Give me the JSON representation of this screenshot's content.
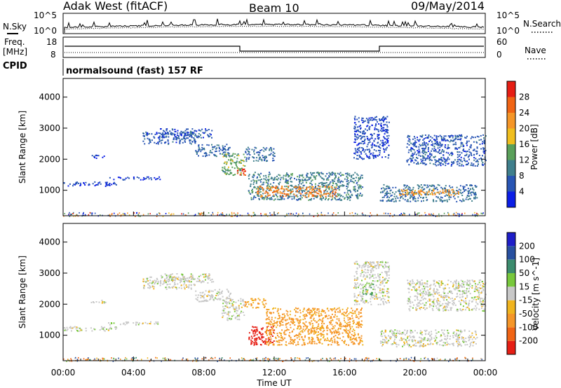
{
  "header": {
    "station": "Adak West (fitACF)",
    "beam": "Beam 10",
    "date": "09/May/2014"
  },
  "noise_panel": {
    "left_label": "N.Sky",
    "left_ticks": [
      "10^5",
      "10^0"
    ],
    "right_label": "N.Search",
    "right_ticks": [
      "10^5",
      "10^0"
    ]
  },
  "freq_panel": {
    "left_label_1": "Freq.",
    "left_label_2": "[MHz]",
    "left_ticks": [
      "18",
      "8"
    ],
    "right_label": "Nave",
    "right_ticks": [
      "60",
      "0"
    ]
  },
  "cpid_panel": {
    "label": "CPID",
    "mode": "normalsound (fast) 157 RF"
  },
  "colors": {
    "power_scale": [
      "#0b1ee6",
      "#2855b4",
      "#3f7f8c",
      "#5aa05a",
      "#f0be1e",
      "#f59628",
      "#f06414",
      "#e61e14"
    ],
    "velocity_scale": [
      "#e61e14",
      "#f06414",
      "#f59628",
      "#f0b41e",
      "#c8c8c8",
      "#78c83c",
      "#3c8c6e",
      "#2850a0",
      "#1e1ec8"
    ]
  },
  "chart_data": [
    {
      "type": "heatmap",
      "panel": "power",
      "xlabel": "Time UT",
      "ylabel": "Slant Range [km]",
      "xlim": [
        "00:00",
        "24:00"
      ],
      "ylim": [
        180,
        4600
      ],
      "x_ticks": [
        "00:00",
        "04:00",
        "08:00",
        "12:00",
        "16:00",
        "20:00",
        "00:00"
      ],
      "y_ticks": [
        1000,
        2000,
        3000,
        4000
      ],
      "colorbar": {
        "label": "Power [dB]",
        "ticks": [
          4,
          8,
          12,
          16,
          20,
          24,
          28
        ],
        "range": [
          0,
          32
        ]
      },
      "regions": [
        {
          "start_h": 0.0,
          "end_h": 3.0,
          "range_km": [
            1150,
            1300
          ],
          "value_db": 4
        },
        {
          "start_h": 1.5,
          "end_h": 2.5,
          "range_km": [
            2050,
            2150
          ],
          "value_db": 4
        },
        {
          "start_h": 2.5,
          "end_h": 5.5,
          "range_km": [
            1350,
            1450
          ],
          "value_db": 4
        },
        {
          "start_h": 4.5,
          "end_h": 7.5,
          "range_km": [
            2500,
            2900
          ],
          "value_db": 6
        },
        {
          "start_h": 5.5,
          "end_h": 8.5,
          "range_km": [
            2700,
            3000
          ],
          "value_db": 6
        },
        {
          "start_h": 7.5,
          "end_h": 9.5,
          "range_km": [
            2100,
            2500
          ],
          "value_db": 7
        },
        {
          "start_h": 9.0,
          "end_h": 10.3,
          "range_km": [
            1500,
            2200
          ],
          "value_db": 14
        },
        {
          "start_h": 9.8,
          "end_h": 10.4,
          "range_km": [
            1500,
            1700
          ],
          "value_db": 30
        },
        {
          "start_h": 10.3,
          "end_h": 12.0,
          "range_km": [
            1950,
            2400
          ],
          "value_db": 8
        },
        {
          "start_h": 10.5,
          "end_h": 17.0,
          "range_km": [
            700,
            1600
          ],
          "value_db": 10
        },
        {
          "start_h": 11.0,
          "end_h": 15.5,
          "range_km": [
            800,
            1150
          ],
          "value_db": 24
        },
        {
          "start_h": 16.5,
          "end_h": 18.5,
          "range_km": [
            2000,
            3400
          ],
          "value_db": 5
        },
        {
          "start_h": 18.0,
          "end_h": 23.5,
          "range_km": [
            650,
            1200
          ],
          "value_db": 9
        },
        {
          "start_h": 19.0,
          "end_h": 22.5,
          "range_km": [
            850,
            1050
          ],
          "value_db": 22
        },
        {
          "start_h": 19.5,
          "end_h": 24.0,
          "range_km": [
            1800,
            2800
          ],
          "value_db": 6
        }
      ]
    },
    {
      "type": "heatmap",
      "panel": "velocity",
      "xlabel": "Time UT",
      "ylabel": "Slant Range [km]",
      "xlim": [
        "00:00",
        "24:00"
      ],
      "ylim": [
        180,
        4600
      ],
      "x_ticks": [
        "00:00",
        "04:00",
        "08:00",
        "12:00",
        "16:00",
        "20:00",
        "00:00"
      ],
      "y_ticks": [
        1000,
        2000,
        3000,
        4000
      ],
      "colorbar": {
        "label": "Velocity [m s^-1]",
        "ticks": [
          200,
          100,
          50,
          15,
          -15,
          -50,
          -100,
          -200
        ],
        "range": [
          -250,
          250
        ]
      },
      "regions": [
        {
          "start_h": 0.0,
          "end_h": 3.0,
          "range_km": [
            1150,
            1300
          ],
          "value_ms": 0
        },
        {
          "start_h": 1.5,
          "end_h": 2.5,
          "range_km": [
            2050,
            2150
          ],
          "value_ms": 0
        },
        {
          "start_h": 2.5,
          "end_h": 5.5,
          "range_km": [
            1350,
            1450
          ],
          "value_ms": 0
        },
        {
          "start_h": 4.5,
          "end_h": 7.5,
          "range_km": [
            2500,
            2900
          ],
          "value_ms": 0
        },
        {
          "start_h": 5.5,
          "end_h": 8.5,
          "range_km": [
            2700,
            3000
          ],
          "value_ms": 0
        },
        {
          "start_h": 7.5,
          "end_h": 9.5,
          "range_km": [
            2100,
            2500
          ],
          "value_ms": 0
        },
        {
          "start_h": 9.0,
          "end_h": 10.3,
          "range_km": [
            1500,
            2200
          ],
          "value_ms": 0
        },
        {
          "start_h": 10.3,
          "end_h": 11.5,
          "range_km": [
            1900,
            2200
          ],
          "value_ms": -60
        },
        {
          "start_h": 10.5,
          "end_h": 12.0,
          "range_km": [
            700,
            1300
          ],
          "value_ms": -220
        },
        {
          "start_h": 11.5,
          "end_h": 17.0,
          "range_km": [
            700,
            1900
          ],
          "value_ms": -60
        },
        {
          "start_h": 16.5,
          "end_h": 18.5,
          "range_km": [
            2000,
            3400
          ],
          "value_ms": 0
        },
        {
          "start_h": 17.0,
          "end_h": 17.6,
          "range_km": [
            2300,
            2700
          ],
          "value_ms": 40
        },
        {
          "start_h": 18.0,
          "end_h": 23.5,
          "range_km": [
            650,
            1200
          ],
          "value_ms": 0
        },
        {
          "start_h": 19.5,
          "end_h": 24.0,
          "range_km": [
            1800,
            2800
          ],
          "value_ms": 0
        }
      ]
    }
  ]
}
